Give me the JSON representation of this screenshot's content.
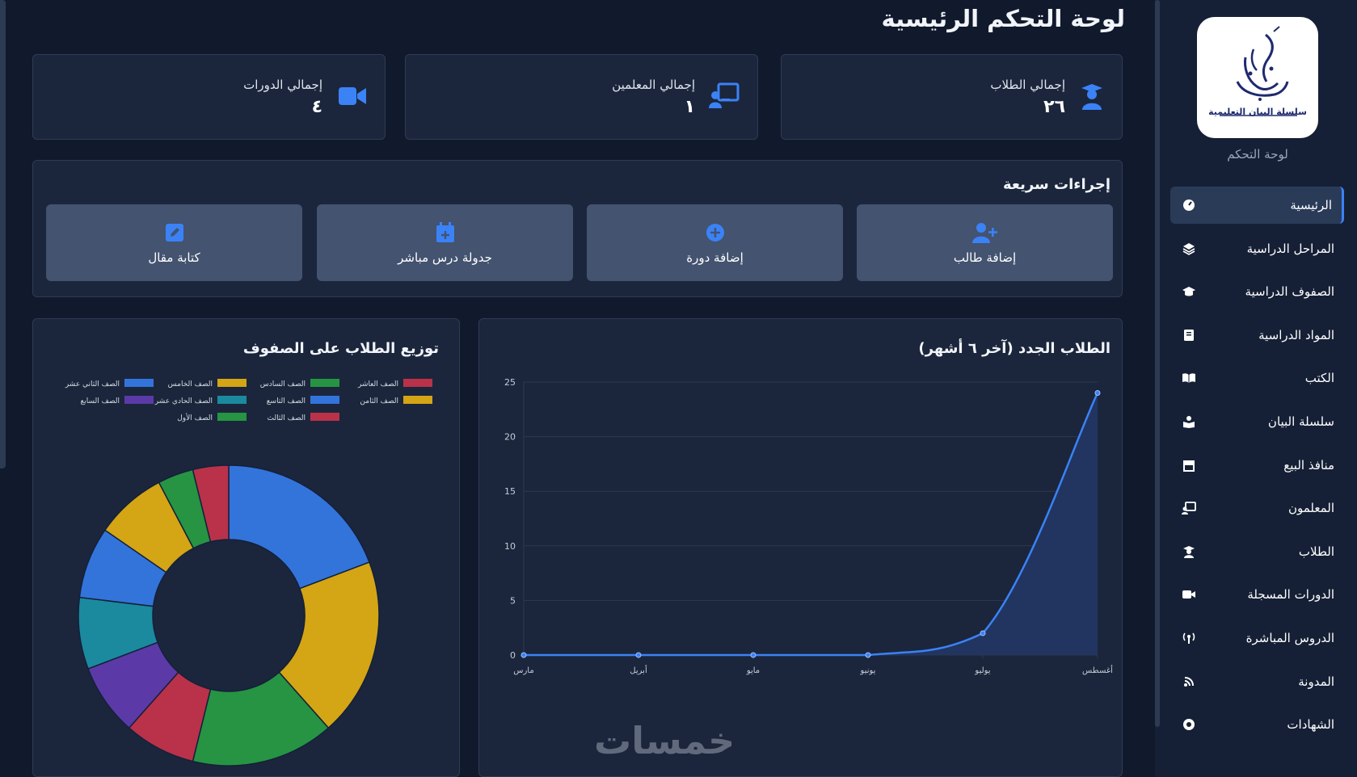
{
  "page_title": "لوحة التحكم الرئيسية",
  "sidebar": {
    "logo_text": "سلسلة البيان التعليمية",
    "caption": "لوحة التحكم",
    "items": [
      {
        "label": "الرئيسية",
        "icon": "dashboard-gauge-icon",
        "active": true
      },
      {
        "label": "المراحل الدراسية",
        "icon": "layers-icon"
      },
      {
        "label": "الصفوف الدراسية",
        "icon": "graduation-cap-icon"
      },
      {
        "label": "المواد الدراسية",
        "icon": "book-icon"
      },
      {
        "label": "الكتب",
        "icon": "open-book-icon"
      },
      {
        "label": "سلسلة البيان",
        "icon": "reader-icon"
      },
      {
        "label": "منافذ البيع",
        "icon": "store-icon"
      },
      {
        "label": "المعلمون",
        "icon": "teacher-board-icon"
      },
      {
        "label": "الطلاب",
        "icon": "student-icon"
      },
      {
        "label": "الدورات المسجلة",
        "icon": "video-camera-icon"
      },
      {
        "label": "الدروس المباشرة",
        "icon": "broadcast-tower-icon"
      },
      {
        "label": "المدونة",
        "icon": "blog-feed-icon"
      },
      {
        "label": "الشهادات",
        "icon": "certificate-badge-icon"
      }
    ]
  },
  "stats": {
    "students": {
      "label": "إجمالي الطلاب",
      "value": "٢٦"
    },
    "teachers": {
      "label": "إجمالي المعلمين",
      "value": "١"
    },
    "courses": {
      "label": "إجمالي الدورات",
      "value": "٤"
    }
  },
  "quick_actions": {
    "title": "إجراءات سريعة",
    "buttons": [
      {
        "label": "إضافة طالب",
        "icon": "user-plus-icon"
      },
      {
        "label": "إضافة دورة",
        "icon": "plus-circle-icon"
      },
      {
        "label": "جدولة درس مباشر",
        "icon": "calendar-plus-icon"
      },
      {
        "label": "كتابة مقال",
        "icon": "edit-pen-icon"
      }
    ]
  },
  "line_chart_title": "الطلاب الجدد (آخر ٦ أشهر)",
  "donut_chart_title": "توزيع الطلاب على الصفوف",
  "watermark": "خمسات",
  "colors": {
    "accent": "#3b82f6",
    "blue": "#3374db",
    "yellow": "#d4a514",
    "green": "#269443",
    "red": "#b9324a",
    "purple": "#5b3aa8",
    "teal": "#1b8a9e"
  },
  "chart_data": [
    {
      "type": "area",
      "title": "الطلاب الجدد (آخر ٦ أشهر)",
      "categories": [
        "مارس",
        "أبريل",
        "مايو",
        "يونيو",
        "يوليو",
        "أغسطس"
      ],
      "series": [
        {
          "values": [
            0,
            0,
            0,
            0,
            2,
            24
          ]
        }
      ],
      "ylim": [
        0,
        25
      ],
      "yticks": [
        0,
        5,
        10,
        15,
        20,
        25
      ],
      "grid": true
    },
    {
      "type": "pie",
      "variant": "doughnut",
      "title": "توزيع الطلاب على الصفوف",
      "legend_position": "top",
      "legend": [
        {
          "name": "الصف العاشر",
          "color": "#b9324a"
        },
        {
          "name": "الصف السادس",
          "color": "#269443"
        },
        {
          "name": "الصف الخامس",
          "color": "#d4a514"
        },
        {
          "name": "الصف الثاني عشر",
          "color": "#3374db"
        },
        {
          "name": "الصف الثامن",
          "color": "#d4a514"
        },
        {
          "name": "الصف التاسع",
          "color": "#3374db"
        },
        {
          "name": "الصف الحادي عشر",
          "color": "#1b8a9e"
        },
        {
          "name": "الصف السابع",
          "color": "#5b3aa8"
        },
        {
          "name": "الصف الثالث",
          "color": "#b9324a"
        },
        {
          "name": "الصف الأول",
          "color": "#269443"
        }
      ],
      "slices": [
        {
          "value": 5,
          "color": "#3374db"
        },
        {
          "value": 5,
          "color": "#d4a514"
        },
        {
          "value": 4,
          "color": "#269443"
        },
        {
          "value": 2,
          "color": "#b9324a"
        },
        {
          "value": 2,
          "color": "#5b3aa8"
        },
        {
          "value": 2,
          "color": "#1b8a9e"
        },
        {
          "value": 2,
          "color": "#3374db"
        },
        {
          "value": 2,
          "color": "#d4a514"
        },
        {
          "value": 1,
          "color": "#269443"
        },
        {
          "value": 1,
          "color": "#b9324a"
        }
      ]
    }
  ]
}
